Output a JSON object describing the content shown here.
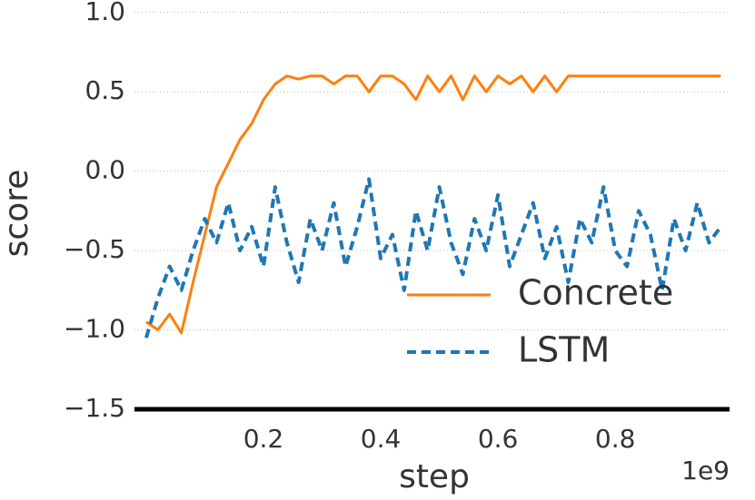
{
  "chart_data": {
    "type": "line",
    "x_label": "step",
    "y_label": "score",
    "x_offset_label": "1e9",
    "x": [
      0.0,
      0.02,
      0.04,
      0.06,
      0.08,
      0.1,
      0.12,
      0.14,
      0.16,
      0.18,
      0.2,
      0.22,
      0.24,
      0.26,
      0.28,
      0.3,
      0.32,
      0.34,
      0.36,
      0.38,
      0.4,
      0.42,
      0.44,
      0.46,
      0.48,
      0.5,
      0.52,
      0.54,
      0.56,
      0.58,
      0.6,
      0.62,
      0.64,
      0.66,
      0.68,
      0.7,
      0.72,
      0.74,
      0.76,
      0.78,
      0.8,
      0.82,
      0.84,
      0.86,
      0.88,
      0.9,
      0.92,
      0.94,
      0.96,
      0.98
    ],
    "series": [
      {
        "name": "Concrete",
        "color": "#ff7f0e",
        "dash": false,
        "values": [
          -0.95,
          -1.0,
          -0.9,
          -1.02,
          -0.7,
          -0.4,
          -0.1,
          0.05,
          0.2,
          0.3,
          0.45,
          0.55,
          0.6,
          0.58,
          0.6,
          0.6,
          0.55,
          0.6,
          0.6,
          0.5,
          0.6,
          0.6,
          0.55,
          0.45,
          0.6,
          0.5,
          0.6,
          0.45,
          0.6,
          0.5,
          0.6,
          0.55,
          0.6,
          0.5,
          0.6,
          0.5,
          0.6,
          0.6,
          0.6,
          0.6,
          0.6,
          0.6,
          0.6,
          0.6,
          0.6,
          0.6,
          0.6,
          0.6,
          0.6,
          0.6
        ]
      },
      {
        "name": "LSTM",
        "color": "#1f77b4",
        "dash": true,
        "values": [
          -1.05,
          -0.8,
          -0.6,
          -0.75,
          -0.5,
          -0.3,
          -0.45,
          -0.2,
          -0.5,
          -0.35,
          -0.6,
          -0.1,
          -0.45,
          -0.7,
          -0.3,
          -0.5,
          -0.2,
          -0.6,
          -0.35,
          -0.05,
          -0.55,
          -0.4,
          -0.75,
          -0.25,
          -0.5,
          -0.1,
          -0.45,
          -0.65,
          -0.3,
          -0.5,
          -0.15,
          -0.6,
          -0.4,
          -0.2,
          -0.55,
          -0.35,
          -0.7,
          -0.3,
          -0.45,
          -0.1,
          -0.5,
          -0.6,
          -0.25,
          -0.4,
          -0.75,
          -0.3,
          -0.5,
          -0.2,
          -0.45,
          -0.35
        ]
      }
    ],
    "xlim": [
      -0.02,
      0.995
    ],
    "ylim": [
      -1.5,
      1.05
    ],
    "xticks": [
      0.2,
      0.4,
      0.6,
      0.8
    ],
    "yticks": [
      {
        "value": 1.0,
        "label": "1.0"
      },
      0.5,
      {
        "value": 0.0,
        "label": "0.0"
      },
      {
        "value": -0.5,
        "label": "−0.5"
      },
      {
        "value": -1.0,
        "label": "−1.0"
      },
      {
        "value": -1.5,
        "label": "−1.5"
      }
    ],
    "grid": true,
    "legend": "lower right"
  }
}
